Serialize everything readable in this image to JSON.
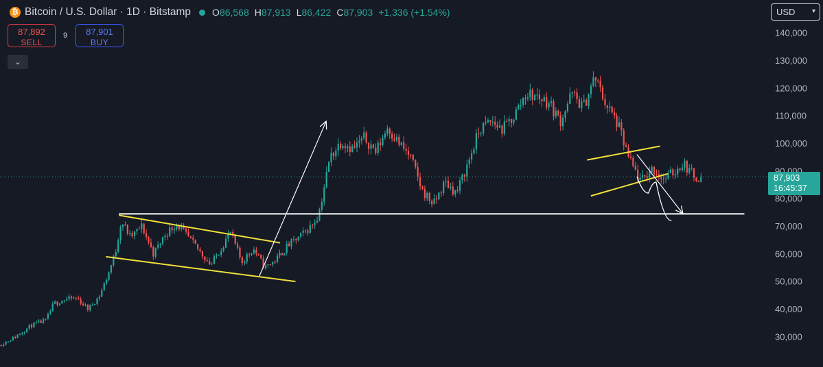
{
  "header": {
    "coin_icon": "bitcoin-icon",
    "coin_glyph": "₿",
    "symbol": "Bitcoin / U.S. Dollar · 1D · Bitstamp",
    "ohlc": {
      "o_label": "O",
      "o": "86,568",
      "h_label": "H",
      "h": "87,913",
      "l_label": "L",
      "l": "86,422",
      "c_label": "C",
      "c": "87,903",
      "change": "+1,336 (+1.54%)"
    }
  },
  "trade": {
    "sell_price": "87,892",
    "sell_label": "SELL",
    "spread": "9",
    "buy_price": "87,901",
    "buy_label": "BUY"
  },
  "currency": "USD",
  "last_price": {
    "value": "87,903",
    "countdown": "16:45:37"
  },
  "colors": {
    "background": "#161a25",
    "up": "#26a69a",
    "down": "#ef5350",
    "channel": "#f2e13a",
    "annotation": "#ffffff"
  },
  "chart_data": {
    "type": "candlestick",
    "title": "Bitcoin / U.S. Dollar · 1D · Bitstamp",
    "ylabel": "",
    "y_ticks": [
      30000,
      40000,
      50000,
      60000,
      70000,
      80000,
      90000,
      100000,
      110000,
      120000,
      130000,
      140000
    ],
    "y_tick_labels": [
      "30,000",
      "40,000",
      "50,000",
      "60,000",
      "70,000",
      "80,000",
      "90,000",
      "100,000",
      "110,000",
      "120,000",
      "130,000",
      "140,000"
    ],
    "ylim": [
      25500,
      142500
    ],
    "grid": false,
    "last_close": 87903,
    "price_path": [
      [
        0.0,
        27000
      ],
      [
        0.02,
        30000
      ],
      [
        0.04,
        34000
      ],
      [
        0.06,
        36000
      ],
      [
        0.07,
        42000
      ],
      [
        0.085,
        43500
      ],
      [
        0.1,
        44000
      ],
      [
        0.115,
        40000
      ],
      [
        0.13,
        45000
      ],
      [
        0.14,
        52000
      ],
      [
        0.15,
        60000
      ],
      [
        0.158,
        72000
      ],
      [
        0.17,
        66000
      ],
      [
        0.185,
        70000
      ],
      [
        0.2,
        60000
      ],
      [
        0.215,
        67000
      ],
      [
        0.23,
        71000
      ],
      [
        0.245,
        66000
      ],
      [
        0.26,
        61000
      ],
      [
        0.275,
        56000
      ],
      [
        0.29,
        63000
      ],
      [
        0.3,
        68000
      ],
      [
        0.315,
        57000
      ],
      [
        0.33,
        62000
      ],
      [
        0.345,
        55000
      ],
      [
        0.36,
        58000
      ],
      [
        0.375,
        63000
      ],
      [
        0.39,
        66000
      ],
      [
        0.405,
        70000
      ],
      [
        0.415,
        74000
      ],
      [
        0.43,
        95000
      ],
      [
        0.445,
        101000
      ],
      [
        0.46,
        98000
      ],
      [
        0.475,
        102000
      ],
      [
        0.49,
        97000
      ],
      [
        0.505,
        106000
      ],
      [
        0.52,
        100000
      ],
      [
        0.535,
        95000
      ],
      [
        0.55,
        83000
      ],
      [
        0.565,
        78000
      ],
      [
        0.58,
        86000
      ],
      [
        0.595,
        82000
      ],
      [
        0.61,
        93000
      ],
      [
        0.625,
        105000
      ],
      [
        0.64,
        108000
      ],
      [
        0.655,
        105000
      ],
      [
        0.67,
        110000
      ],
      [
        0.685,
        118000
      ],
      [
        0.7,
        117000
      ],
      [
        0.715,
        115000
      ],
      [
        0.73,
        108000
      ],
      [
        0.745,
        118000
      ],
      [
        0.76,
        113000
      ],
      [
        0.775,
        124000
      ],
      [
        0.79,
        114000
      ],
      [
        0.805,
        107000
      ],
      [
        0.82,
        94000
      ],
      [
        0.835,
        86000
      ],
      [
        0.85,
        91000
      ],
      [
        0.865,
        87000
      ],
      [
        0.88,
        90000
      ],
      [
        0.89,
        93000
      ],
      [
        0.905,
        88000
      ],
      [
        0.915,
        87903
      ]
    ],
    "annotations": [
      {
        "type": "trendline",
        "color": "yellow",
        "points": [
          [
            0.155,
            74000
          ],
          [
            0.365,
            64000
          ]
        ]
      },
      {
        "type": "trendline",
        "color": "yellow",
        "points": [
          [
            0.138,
            59000
          ],
          [
            0.385,
            50000
          ]
        ]
      },
      {
        "type": "trendline",
        "color": "yellow",
        "points": [
          [
            0.765,
            94000
          ],
          [
            0.86,
            99000
          ]
        ]
      },
      {
        "type": "trendline",
        "color": "yellow",
        "points": [
          [
            0.77,
            81000
          ],
          [
            0.87,
            89000
          ]
        ]
      },
      {
        "type": "horizontal-line",
        "color": "white",
        "points": [
          [
            0.155,
            74500
          ],
          [
            0.97,
            74500
          ]
        ]
      },
      {
        "type": "arrow",
        "color": "white",
        "points": [
          [
            0.338,
            52000
          ],
          [
            0.425,
            108000
          ]
        ]
      },
      {
        "type": "arrow",
        "color": "white",
        "points": [
          [
            0.83,
            96000
          ],
          [
            0.89,
            74500
          ]
        ]
      },
      {
        "type": "projection-path",
        "color": "white",
        "points": [
          [
            0.83,
            88000
          ],
          [
            0.845,
            82000
          ],
          [
            0.855,
            86000
          ],
          [
            0.875,
            72000
          ]
        ]
      }
    ]
  }
}
